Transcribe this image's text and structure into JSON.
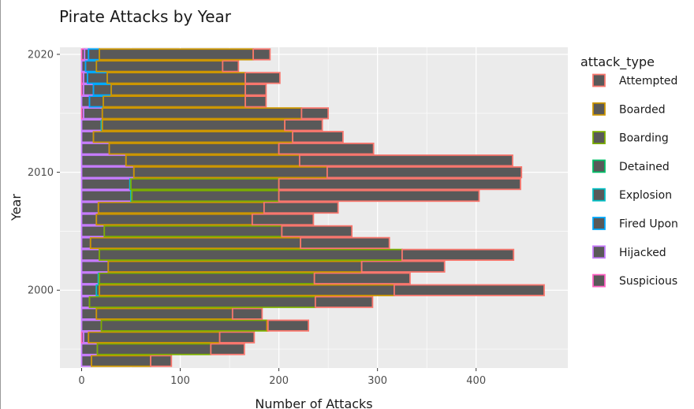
{
  "chart_data": {
    "type": "bar",
    "orientation": "horizontal",
    "stacked": true,
    "title": "Pirate Attacks by Year",
    "xlabel": "Number of Attacks",
    "ylabel": "Year",
    "xlim": [
      -22,
      493
    ],
    "ylim": [
      1993.4,
      2020.6
    ],
    "x_ticks": [
      0,
      100,
      200,
      300,
      400
    ],
    "y_ticks": [
      2000,
      2010,
      2020
    ],
    "grid": true,
    "legend_title": "attack_type",
    "legend_position": "right",
    "fill_color": "#595959",
    "categories": [
      1994,
      1995,
      1996,
      1997,
      1998,
      1999,
      2000,
      2001,
      2002,
      2003,
      2004,
      2005,
      2006,
      2007,
      2008,
      2009,
      2010,
      2011,
      2012,
      2013,
      2014,
      2015,
      2016,
      2017,
      2018,
      2019,
      2020
    ],
    "series": [
      {
        "name": "Suspicious",
        "color": "#FF61C3",
        "values": [
          0,
          0,
          2,
          0,
          0,
          0,
          0,
          0,
          0,
          0,
          0,
          0,
          0,
          0,
          0,
          0,
          0,
          0,
          0,
          0,
          0,
          2,
          0,
          2,
          2,
          0,
          3
        ]
      },
      {
        "name": "Hijacked",
        "color": "#C77CFF",
        "values": [
          10,
          16,
          5,
          20,
          15,
          8,
          15,
          17,
          27,
          18,
          9,
          23,
          15,
          17,
          50,
          49,
          53,
          45,
          28,
          12,
          20,
          19,
          8,
          10,
          4,
          4,
          4
        ]
      },
      {
        "name": "Fired Upon",
        "color": "#00A9FF",
        "values": [
          0,
          0,
          0,
          0,
          0,
          0,
          0,
          0,
          0,
          0,
          0,
          0,
          0,
          0,
          0,
          0,
          0,
          0,
          0,
          0,
          0,
          0,
          14,
          18,
          20,
          11,
          11
        ]
      },
      {
        "name": "Explosion",
        "color": "#00BFC4",
        "values": [
          0,
          0,
          0,
          0,
          0,
          0,
          3,
          1,
          0,
          0,
          0,
          0,
          0,
          0,
          1,
          1,
          0,
          0,
          0,
          0,
          1,
          0,
          0,
          0,
          0,
          0,
          0
        ]
      },
      {
        "name": "Detained",
        "color": "#00BE67",
        "values": [
          0,
          0,
          0,
          0,
          0,
          0,
          0,
          0,
          0,
          0,
          0,
          0,
          0,
          0,
          0,
          0,
          0,
          0,
          0,
          0,
          0,
          0,
          0,
          0,
          0,
          0,
          0
        ]
      },
      {
        "name": "Boarding",
        "color": "#7CAE00",
        "values": [
          0,
          115,
          0,
          168,
          0,
          229,
          0,
          218,
          0,
          307,
          0,
          180,
          0,
          0,
          149,
          150,
          0,
          0,
          0,
          0,
          0,
          0,
          0,
          0,
          0,
          0,
          0
        ]
      },
      {
        "name": "Boarded",
        "color": "#CD9600",
        "values": [
          60,
          0,
          133,
          1,
          138,
          0,
          299,
          0,
          257,
          0,
          213,
          0,
          158,
          168,
          0,
          0,
          196,
          176,
          172,
          202,
          185,
          202,
          144,
          136,
          140,
          128,
          156
        ]
      },
      {
        "name": "Attempted",
        "color": "#F8766D",
        "values": [
          21,
          34,
          35,
          41,
          30,
          58,
          152,
          97,
          84,
          113,
          90,
          71,
          62,
          75,
          203,
          245,
          197,
          216,
          96,
          51,
          38,
          27,
          21,
          21,
          35,
          16,
          17
        ]
      }
    ]
  }
}
